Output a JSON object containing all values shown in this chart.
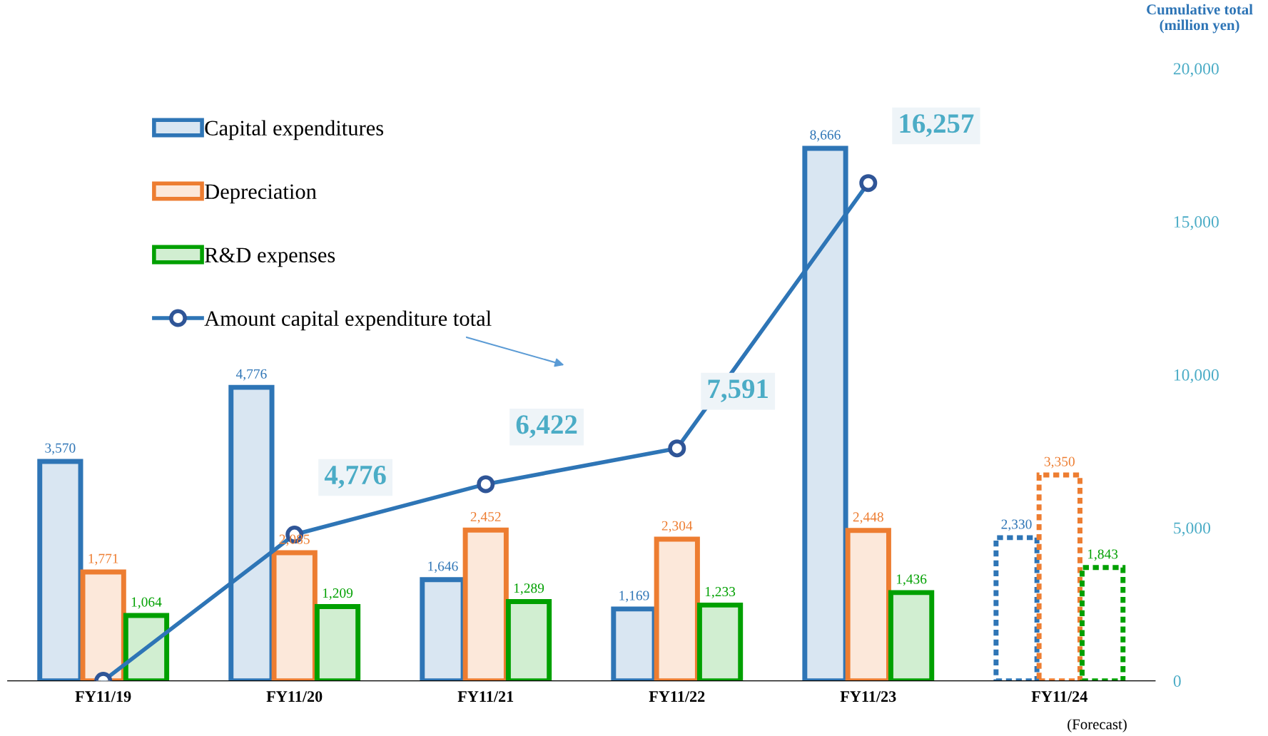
{
  "chart_data": {
    "type": "bar",
    "categories": [
      "FY11/19",
      "FY11/20",
      "FY11/21",
      "FY11/22",
      "FY11/23",
      "FY11/24"
    ],
    "y2lim": [
      0,
      20000
    ],
    "y2ticks": [
      0,
      {
        "value": 5000,
        "label": "5,000"
      },
      {
        "value": 10000,
        "label": "10,000"
      },
      {
        "value": 15000,
        "label": "15,000"
      },
      {
        "value": 20000,
        "label": "20,000"
      }
    ],
    "y2label": "Cumulative total\n(million yen)",
    "series": [
      {
        "name": "Capital expenditures",
        "color": "#2e75b6",
        "values": [
          3570,
          4776,
          1646,
          1169,
          8666,
          2330
        ],
        "value_labels": [
          "3,570",
          "4,776",
          "1,646",
          "1,169",
          "8,666",
          "2,330"
        ],
        "line_style": [
          "solid",
          "solid",
          "solid",
          "solid",
          "solid",
          "dotted"
        ]
      },
      {
        "name": "Depreciation",
        "color": "#ed7d31",
        "values": [
          1771,
          2085,
          2452,
          2304,
          2448,
          3350
        ],
        "value_labels": [
          "1,771",
          "2,085",
          "2,452",
          "2,304",
          "2,448",
          "3,350"
        ],
        "line_style": [
          "solid",
          "solid",
          "solid",
          "solid",
          "solid",
          "dotted"
        ]
      },
      {
        "name": "R&D expenses",
        "color": "#00a000",
        "values": [
          1064,
          1209,
          1289,
          1233,
          1436,
          1843
        ],
        "value_labels": [
          "1,064",
          "1,209",
          "1,289",
          "1,233",
          "1,436",
          "1,843"
        ],
        "line_style": [
          "solid",
          "solid",
          "solid",
          "solid",
          "solid",
          "dotted"
        ]
      },
      {
        "name": "Amount capital expenditure total",
        "type": "line",
        "axis": "y2",
        "color": "#2e75b6",
        "marker": "circle",
        "values": [
          0,
          4776,
          6422,
          7591,
          16257,
          null
        ],
        "value_labels": [
          null,
          "4,776",
          "6,422",
          "7,591",
          "16,257",
          null
        ]
      }
    ],
    "legend": "top left",
    "grid": false,
    "annotations": [
      "(Forecast)"
    ]
  }
}
